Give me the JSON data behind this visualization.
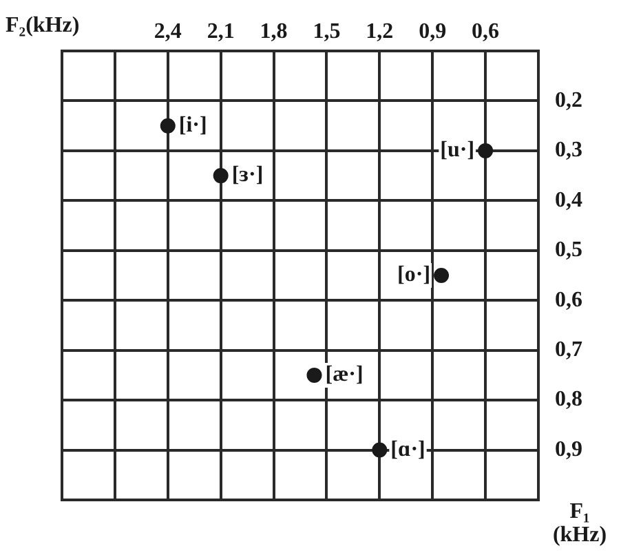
{
  "chart_data": {
    "type": "scatter",
    "xlabel": "F₂(kHz)",
    "ylabel": "F₁ (kHz)",
    "x": [
      2.4,
      2.1,
      0.6,
      0.85,
      1.57,
      1.2
    ],
    "values": [
      0.25,
      0.35,
      0.3,
      0.55,
      0.75,
      0.9
    ],
    "color": "#1a1a1a",
    "marker": "circle",
    "grid": true,
    "xlim": [
      3.0,
      0.3
    ],
    "ylim": [
      1.0,
      0.1
    ],
    "xticks": [
      {
        "value": 2.7,
        "label": null
      },
      {
        "value": 2.4,
        "label": "2,4"
      },
      {
        "value": 2.1,
        "label": "2,1"
      },
      {
        "value": 1.8,
        "label": "1,8"
      },
      {
        "value": 1.5,
        "label": "1,5"
      },
      {
        "value": 1.2,
        "label": "1,2"
      },
      {
        "value": 0.9,
        "label": "0,9"
      },
      {
        "value": 0.6,
        "label": "0,6"
      }
    ],
    "yticks": [
      {
        "value": 0.2,
        "label": "0,2"
      },
      {
        "value": 0.3,
        "label": "0,3"
      },
      {
        "value": 0.4,
        "label": "0,4"
      },
      {
        "value": 0.5,
        "label": "0,5"
      },
      {
        "value": 0.6,
        "label": "0,6"
      },
      {
        "value": 0.7,
        "label": "0,7"
      },
      {
        "value": 0.8,
        "label": "0,8"
      },
      {
        "value": 0.9,
        "label": "0,9"
      }
    ],
    "annotations": [
      {
        "text": "[i·]",
        "x": 2.4,
        "y": 0.25
      },
      {
        "text": "[ɜ·]",
        "x": 2.1,
        "y": 0.35
      },
      {
        "text": "[u·]",
        "x": 0.6,
        "y": 0.3
      },
      {
        "text": "[o·]",
        "x": 0.85,
        "y": 0.55
      },
      {
        "text": "[æ·]",
        "x": 1.57,
        "y": 0.75
      },
      {
        "text": "[ɑ·]",
        "x": 1.2,
        "y": 0.9
      }
    ]
  }
}
